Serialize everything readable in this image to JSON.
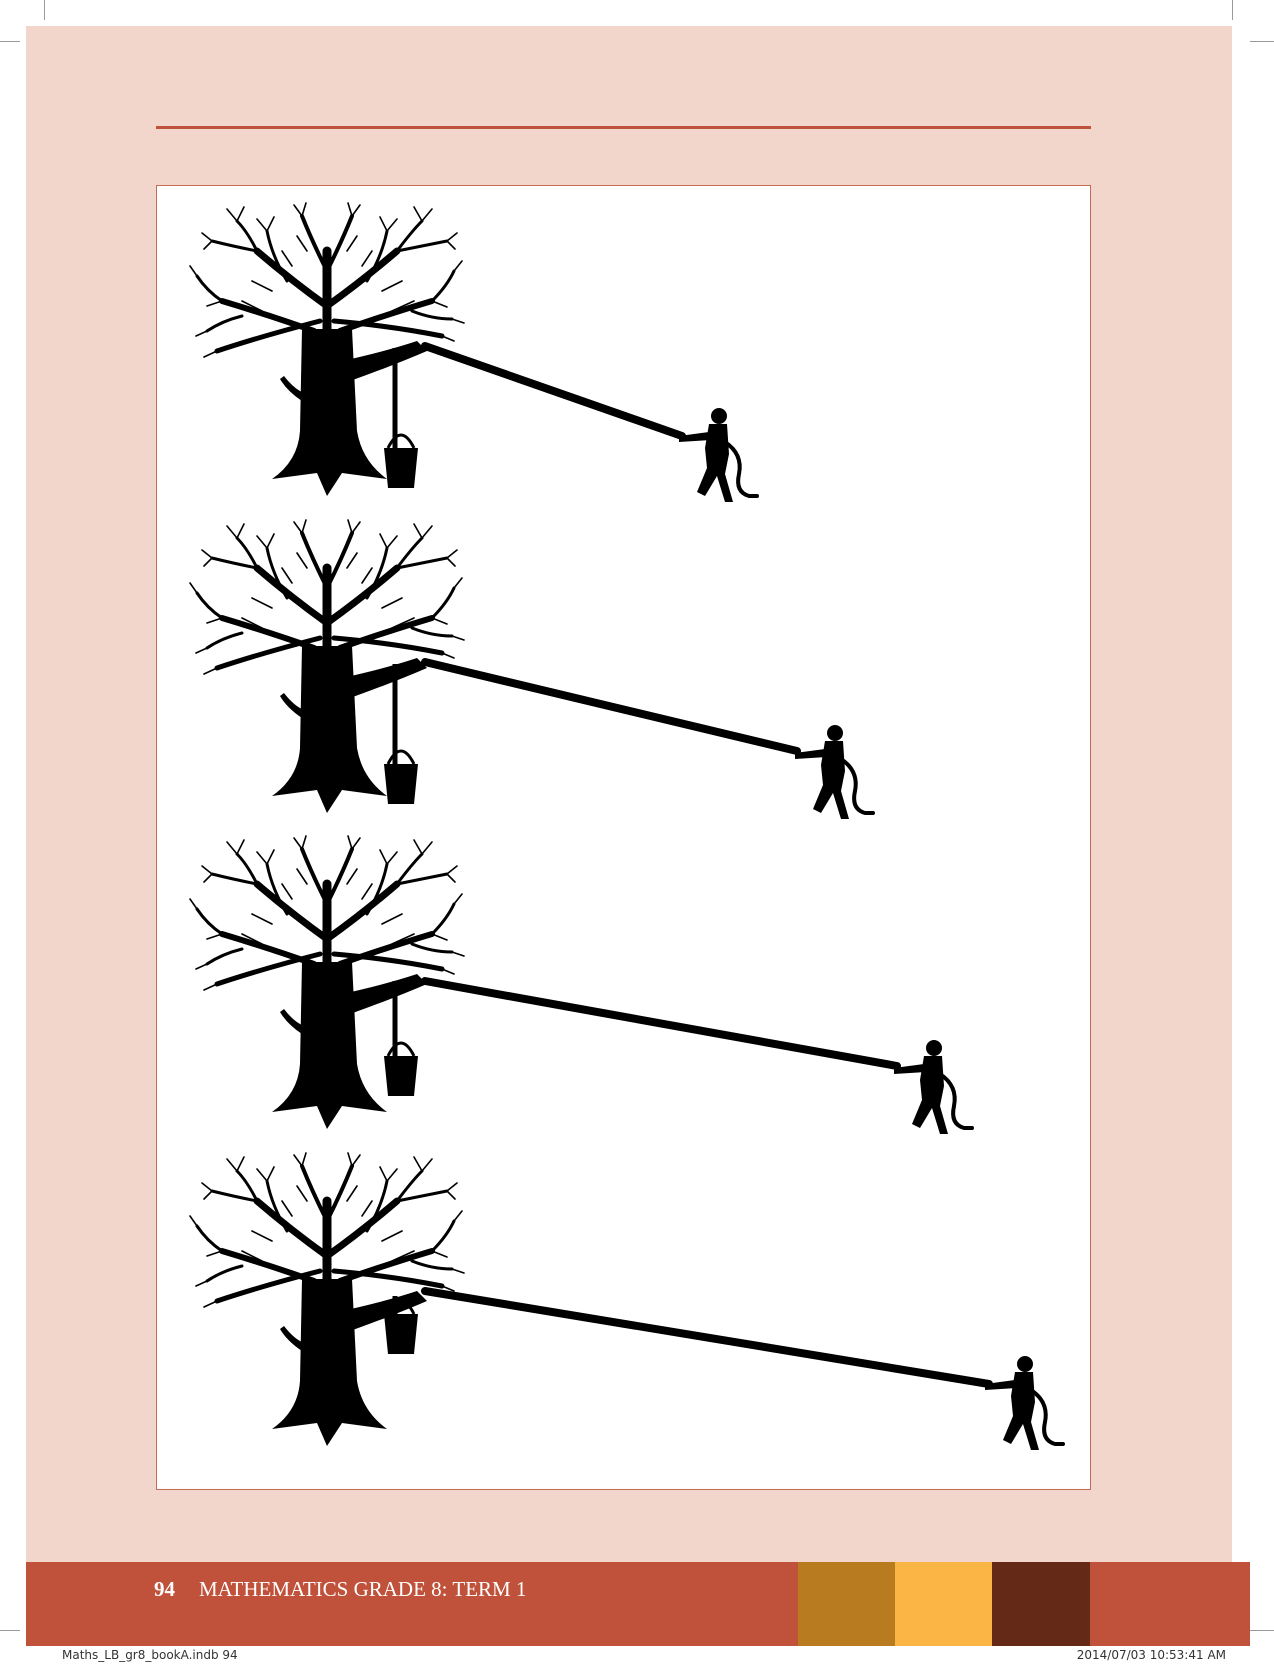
{
  "footer": {
    "page_number": "94",
    "title": "MATHEMATICS GRADE 8: TERM 1",
    "colors": {
      "band": "#c0513a",
      "swatch_1": "#b87b1f",
      "swatch_2": "#fbb545",
      "swatch_3": "#652a17"
    }
  },
  "slug": {
    "file_info": "Maths_LB_gr8_bookA.indb  94",
    "timestamp": "2014/07/03  10:53:41 AM"
  },
  "illustration": {
    "subject": "tree with rope pulled by a person, bucket hanging",
    "colors": {
      "silhouette": "#000000",
      "page": "#f2d6cc",
      "rule": "#c0513a"
    },
    "scenes": [
      {
        "name": "scene-1"
      },
      {
        "name": "scene-2"
      },
      {
        "name": "scene-3"
      },
      {
        "name": "scene-4"
      }
    ]
  }
}
